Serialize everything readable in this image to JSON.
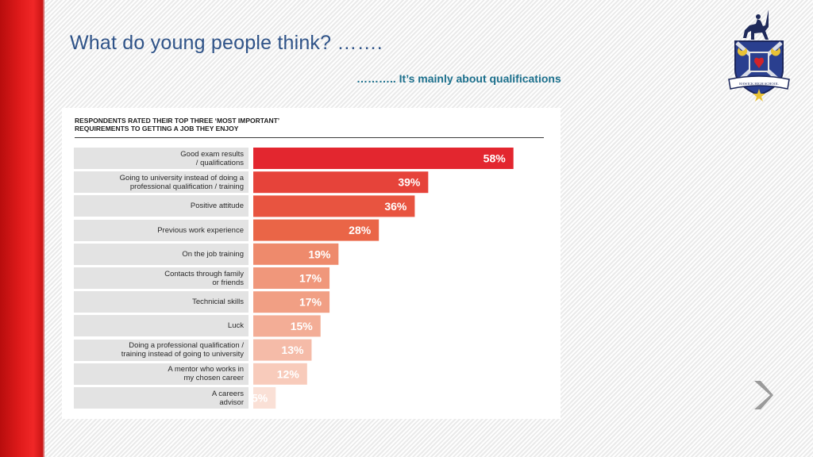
{
  "slide": {
    "title": "What do young people think? …….",
    "subtitle": "……….. It’s mainly about qualifications"
  },
  "logo": {
    "name": "hawick-high-school-crest",
    "text": "HAWICK HIGH SCHOOL"
  },
  "navigation": {
    "next_icon": "chevron-right-icon"
  },
  "chart_data": {
    "type": "bar",
    "orientation": "horizontal",
    "title_lines": [
      "RESPONDENTS RATED THEIR TOP THREE ‘MOST IMPORTANT’",
      "REQUIREMENTS TO GETTING A JOB THEY ENJOY"
    ],
    "categories": [
      [
        "Good exam results",
        "/ qualifications"
      ],
      [
        "Going to university instead of doing a",
        "professional qualification / training"
      ],
      [
        "Positive attitude"
      ],
      [
        "Previous work experience"
      ],
      [
        "On the job training"
      ],
      [
        "Contacts through family",
        "or friends"
      ],
      [
        "Technicial skills"
      ],
      [
        "Luck"
      ],
      [
        "Doing a professional qualification /",
        "training instead of going to university"
      ],
      [
        "A mentor who works in",
        "my chosen career"
      ],
      [
        "A careers",
        "advisor"
      ]
    ],
    "values": [
      58,
      39,
      36,
      28,
      19,
      17,
      17,
      15,
      13,
      12,
      5
    ],
    "value_labels": [
      "58%",
      "39%",
      "36%",
      "28%",
      "19%",
      "17%",
      "17%",
      "15%",
      "13%",
      "12%",
      "5%"
    ],
    "colors": [
      "#e3262f",
      "#e6433a",
      "#e85440",
      "#ea6547",
      "#ee8a6c",
      "#f0977b",
      "#f19f84",
      "#f3ad96",
      "#f5bba8",
      "#f8cbbb",
      "#fae0d6"
    ],
    "xlim": [
      0,
      100
    ],
    "grid": false,
    "legend": "none"
  }
}
